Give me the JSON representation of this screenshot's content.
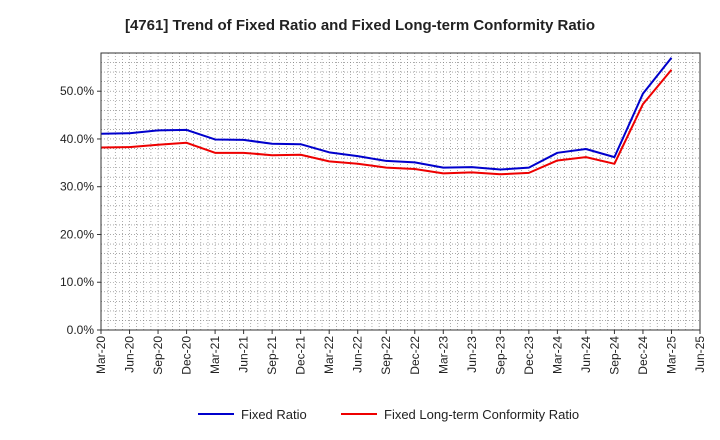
{
  "chart_data": {
    "type": "line",
    "title": "[4761]  Trend of Fixed Ratio and Fixed Long-term Conformity Ratio",
    "xlabel": "",
    "ylabel": "",
    "x": [
      "Mar-20",
      "Jun-20",
      "Sep-20",
      "Dec-20",
      "Mar-21",
      "Jun-21",
      "Sep-21",
      "Dec-21",
      "Mar-22",
      "Jun-22",
      "Sep-22",
      "Dec-22",
      "Mar-23",
      "Jun-23",
      "Sep-23",
      "Dec-23",
      "Mar-24",
      "Jun-24",
      "Sep-24",
      "Dec-24",
      "Mar-25",
      "Jun-25"
    ],
    "ylim": [
      0,
      58
    ],
    "y_ticks": [
      0,
      10,
      20,
      30,
      40,
      50
    ],
    "y_tick_labels": [
      "0.0%",
      "10.0%",
      "20.0%",
      "30.0%",
      "40.0%",
      "50.0%"
    ],
    "grid": true,
    "legend_position": "bottom",
    "series": [
      {
        "name": "Fixed Ratio",
        "color": "#0000cc",
        "values": [
          41.1,
          41.2,
          41.8,
          41.9,
          39.9,
          39.8,
          39.0,
          38.9,
          37.2,
          36.4,
          35.4,
          35.1,
          34.0,
          34.1,
          33.6,
          34.0,
          37.1,
          37.9,
          36.2,
          49.5,
          57.0,
          null
        ]
      },
      {
        "name": "Fixed Long-term Conformity Ratio",
        "color": "#ee0000",
        "values": [
          38.2,
          38.3,
          38.8,
          39.2,
          37.1,
          37.1,
          36.6,
          36.7,
          35.3,
          34.8,
          34.0,
          33.7,
          32.8,
          33.0,
          32.6,
          32.9,
          35.5,
          36.2,
          34.8,
          47.3,
          54.5,
          null
        ]
      }
    ]
  }
}
